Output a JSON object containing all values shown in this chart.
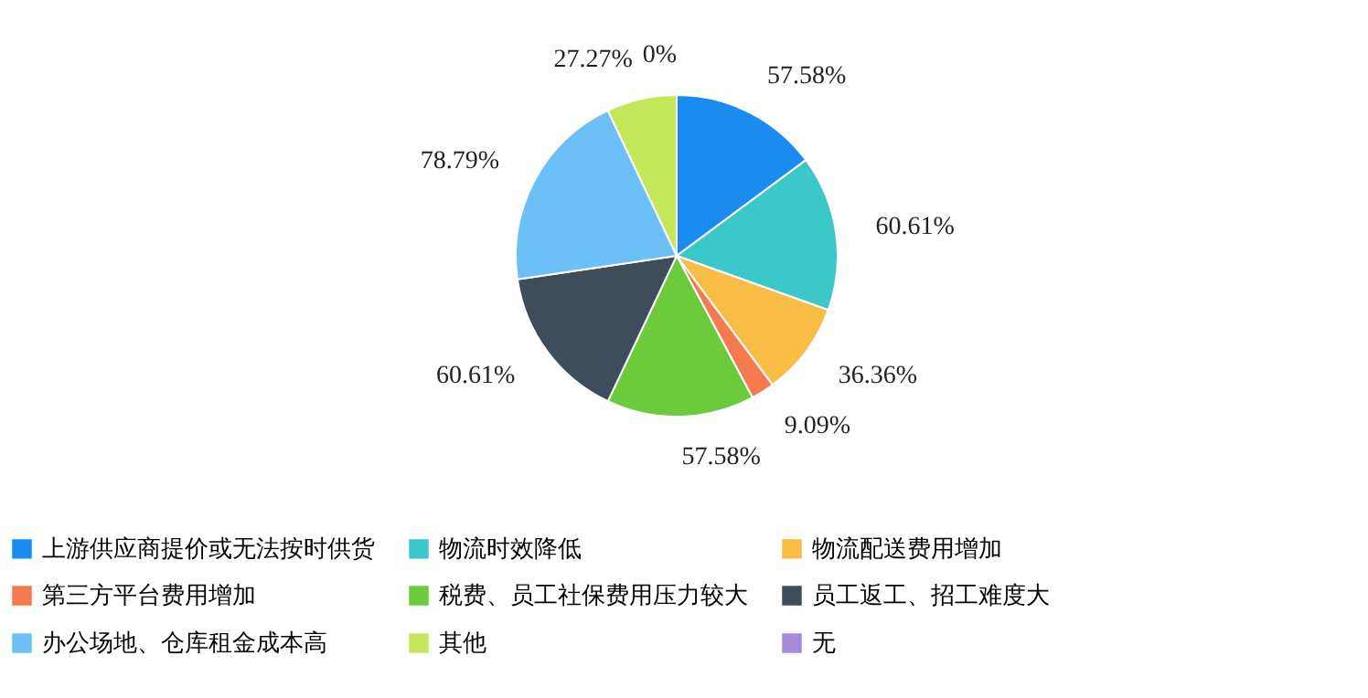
{
  "chart_data": {
    "type": "pie",
    "categories": [
      "上游供应商提价或无法按时供货",
      "物流时效降低",
      "物流配送费用增加",
      "第三方平台费用增加",
      "税费、员工社保费用压力较大",
      "员工返工、招工难度大",
      "办公场地、仓库租金成本高",
      "其他",
      "无"
    ],
    "values": [
      57.58,
      60.61,
      36.36,
      9.09,
      57.58,
      60.61,
      78.79,
      27.27,
      0
    ],
    "value_labels": [
      "57.58%",
      "60.61%",
      "36.36%",
      "9.09%",
      "57.58%",
      "60.61%",
      "78.79%",
      "27.27%",
      "0%"
    ],
    "colors": [
      "#1a8cf0",
      "#3cc8c8",
      "#f7bd45",
      "#f47a4f",
      "#6bcb3c",
      "#3e4d5a",
      "#6cc0f5",
      "#c4e85a",
      "#a78bdb"
    ],
    "legend": "bottom"
  }
}
